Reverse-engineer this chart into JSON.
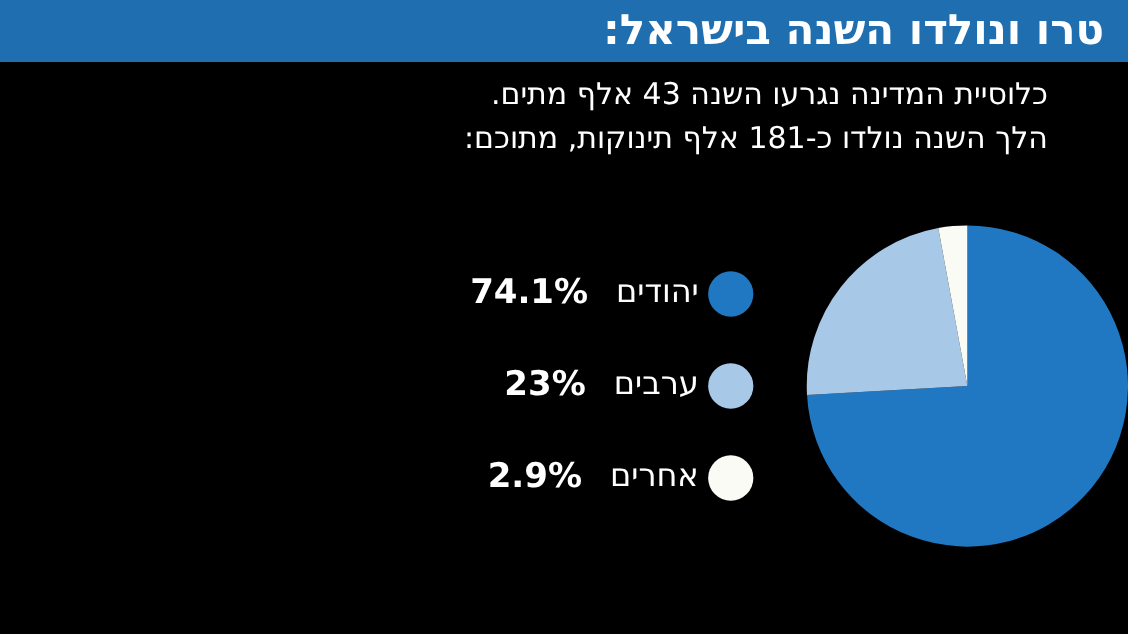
{
  "chart_data": {
    "type": "pie",
    "title": "טרו ונולדו השנה בישראל:",
    "subtitle": "כלוסיית המדינה נגרעו השנה 43 אלף מתים.\nהלך השנה נולדו כ-181 אלף תינוקות, מתוכם:",
    "categories": [
      "יהודים",
      "ערבים",
      "אחרים"
    ],
    "values": [
      74.1,
      23,
      2.9
    ],
    "value_labels": [
      "74.1%",
      "23%",
      "2.9%"
    ],
    "colors": [
      "#1f78c1",
      "#a7c8e6",
      "#fbfbf5"
    ],
    "legend": "left"
  }
}
